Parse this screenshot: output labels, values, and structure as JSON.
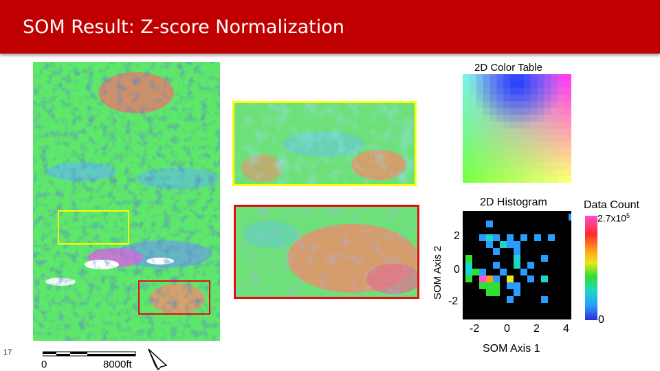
{
  "slide": {
    "title": "SOM Result: Z-score Normalization",
    "number": "17"
  },
  "scale_bar": {
    "start_label": "0",
    "end_label": "8000ft"
  },
  "color_table": {
    "title": "2D Color Table"
  },
  "histogram": {
    "title": "2D Histogram",
    "x_axis_label": "SOM Axis 1",
    "y_axis_label": "SOM Axis 2",
    "x_ticks": [
      "-2",
      "0",
      "2",
      "4"
    ],
    "y_ticks": [
      "2",
      "0",
      "-2"
    ]
  },
  "colorbar": {
    "title": "Data Count",
    "max_label_base": "2.7x10",
    "max_label_exp": "5",
    "min_label": "0"
  },
  "colors": {
    "title_bar": "#c00000",
    "yellow_box": "#ffff00",
    "red_box": "#e01010"
  }
}
